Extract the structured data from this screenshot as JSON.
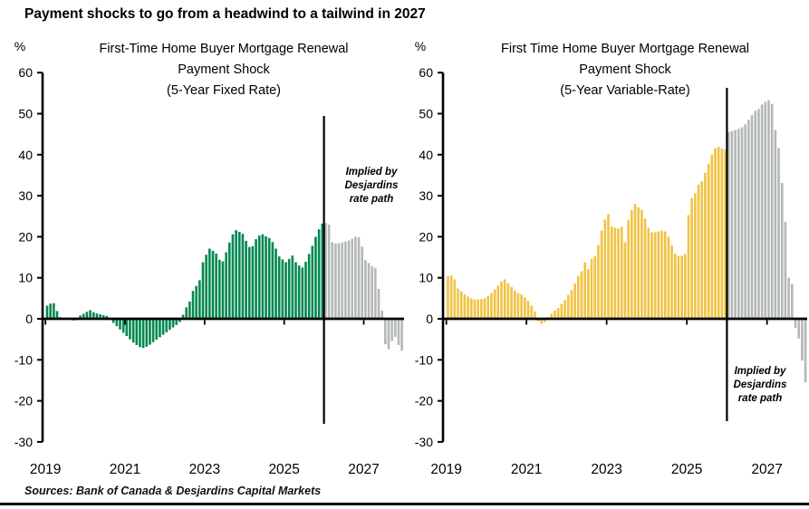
{
  "page_title": "Payment shocks to go from a headwind to a tailwind in 2027",
  "source_note": "Sources: Bank of Canada & Desjardins Capital Markets",
  "colors": {
    "fixed_bar": "#00884f",
    "variable_bar": "#f0c344",
    "forecast_bar": "#b3b8b6",
    "axis": "#000000",
    "text": "#000000"
  },
  "chart_data": [
    {
      "type": "bar",
      "title_lines": [
        "First-Time Home Buyer Mortgage Renewal",
        "Payment Shock",
        "(5-Year Fixed Rate)"
      ],
      "unit_label": "%",
      "ylim": [
        -30,
        60
      ],
      "ytick_step": 10,
      "y_tick_labels": [
        "60",
        "50",
        "40",
        "30",
        "20",
        "10",
        "0",
        "-10",
        "-20",
        "-30"
      ],
      "x_tick_labels": [
        "2019",
        "2021",
        "2023",
        "2025",
        "2027"
      ],
      "x_start_year": 2019,
      "periods_per_year": 12,
      "grid": "off",
      "legend": "none",
      "annotation_lines": [
        "Implied by",
        "Desjardins",
        "rate path"
      ],
      "forecast_start_index": 84,
      "bar_color_key": "fixed_bar",
      "values": [
        3.2,
        3.7,
        3.8,
        1.9,
        0.4,
        0.2,
        0.1,
        -0.2,
        -0.4,
        -0.3,
        0.8,
        1.2,
        1.7,
        2.1,
        1.6,
        1.3,
        1.1,
        0.9,
        0.7,
        -0.3,
        -1.0,
        -1.8,
        -2.6,
        -3.4,
        -4.2,
        -5.0,
        -5.8,
        -6.4,
        -6.9,
        -7.1,
        -6.8,
        -6.3,
        -5.7,
        -5.1,
        -4.5,
        -3.9,
        -3.3,
        -2.7,
        -2.1,
        -1.5,
        -0.8,
        1.0,
        2.8,
        4.2,
        6.8,
        8.0,
        9.4,
        13.8,
        15.6,
        17.1,
        16.6,
        15.9,
        14.4,
        14.0,
        16.2,
        18.6,
        20.6,
        21.6,
        21.2,
        20.7,
        19.0,
        17.5,
        17.7,
        19.4,
        20.3,
        20.6,
        20.1,
        19.7,
        18.7,
        17.1,
        15.2,
        14.5,
        13.8,
        14.6,
        15.4,
        13.8,
        13.0,
        12.5,
        13.9,
        15.8,
        17.8,
        20.0,
        21.8,
        23.2,
        23.4,
        23.0,
        18.7,
        18.4,
        18.4,
        18.6,
        18.8,
        19.1,
        19.5,
        20.0,
        19.9,
        17.6,
        14.3,
        13.6,
        12.8,
        12.4,
        7.3,
        2.0,
        -6.2,
        -7.4,
        -5.4,
        -4.4,
        -6.4,
        -7.8
      ]
    },
    {
      "type": "bar",
      "title_lines": [
        "First Time Home Buyer Mortgage Renewal",
        "Payment Shock",
        "(5-Year Variable-Rate)"
      ],
      "unit_label": "%",
      "ylim": [
        -30,
        60
      ],
      "ytick_step": 10,
      "y_tick_labels": [
        "60",
        "50",
        "40",
        "30",
        "20",
        "10",
        "0",
        "-10",
        "-20",
        "-30"
      ],
      "x_tick_labels": [
        "2019",
        "2021",
        "2023",
        "2025",
        "2027"
      ],
      "x_start_year": 2019,
      "periods_per_year": 12,
      "grid": "off",
      "legend": "none",
      "annotation_lines": [
        "Implied by",
        "Desjardins",
        "rate path"
      ],
      "forecast_start_index": 84,
      "bar_color_key": "variable_bar",
      "values": [
        10.4,
        10.6,
        9.6,
        7.4,
        6.7,
        5.9,
        5.4,
        5.0,
        4.7,
        4.7,
        4.8,
        5.0,
        5.6,
        6.3,
        7.2,
        8.1,
        9.1,
        9.6,
        8.7,
        7.8,
        6.9,
        6.3,
        5.9,
        5.2,
        4.4,
        3.2,
        1.8,
        -0.6,
        -1.2,
        -0.8,
        0.4,
        1.3,
        2.0,
        2.6,
        3.6,
        4.6,
        5.8,
        7.0,
        8.6,
        10.4,
        11.6,
        13.8,
        12.1,
        14.6,
        15.3,
        18.0,
        21.5,
        24.2,
        25.5,
        22.5,
        22.2,
        22.0,
        22.4,
        18.6,
        24.0,
        26.5,
        28.0,
        27.2,
        26.6,
        24.4,
        22.2,
        21.1,
        21.1,
        21.3,
        21.5,
        21.3,
        20.0,
        17.9,
        15.9,
        15.3,
        15.4,
        15.8,
        25.3,
        29.4,
        30.6,
        32.7,
        33.5,
        35.6,
        37.8,
        40.0,
        41.6,
        41.9,
        41.5,
        41.2,
        45.5,
        45.8,
        46.0,
        46.3,
        46.7,
        47.4,
        48.5,
        49.6,
        50.7,
        51.1,
        52.2,
        52.9,
        53.3,
        52.4,
        46.0,
        41.6,
        33.1,
        23.6,
        10.0,
        8.5,
        -2.2,
        -4.8,
        -10.2,
        -15.5
      ]
    }
  ]
}
